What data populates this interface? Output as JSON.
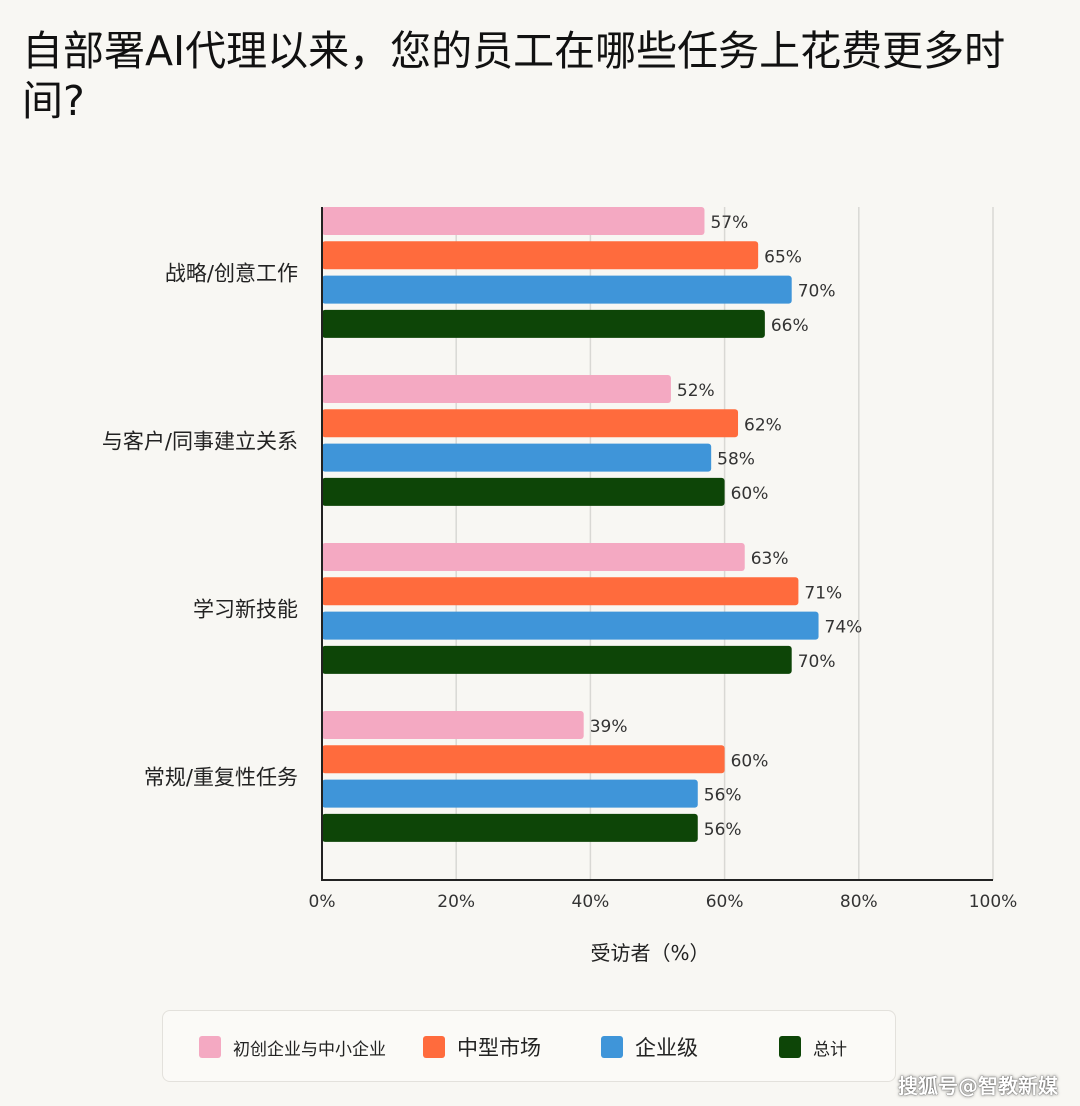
{
  "title": "自部署AI代理以来，您的员工在哪些任务上花费更多时间?",
  "watermark": "搜狐号@智教新媒",
  "chart_data": {
    "type": "bar",
    "orientation": "horizontal",
    "title": "自部署AI代理以来，您的员工在哪些任务上花费更多时间?",
    "xlabel": "受访者（%）",
    "ylabel": "",
    "xlim": [
      0,
      100
    ],
    "x_ticks": [
      "0%",
      "20%",
      "40%",
      "60%",
      "80%",
      "100%"
    ],
    "grid": true,
    "legend_position": "bottom",
    "categories": [
      "战略/创意工作",
      "与客户/同事建立关系",
      "学习新技能",
      "常规/重复性任务"
    ],
    "series": [
      {
        "name": "初创企业与中小企业",
        "color": "#f4a9c2",
        "values": [
          57,
          52,
          63,
          39
        ],
        "labels": [
          "57%",
          "52%",
          "63%",
          "39%"
        ]
      },
      {
        "name": "中型市场",
        "color": "#ff6b3d",
        "values": [
          65,
          62,
          71,
          60
        ],
        "labels": [
          "65%",
          "62%",
          "71%",
          "60%"
        ]
      },
      {
        "name": "企业级",
        "color": "#3f95d9",
        "values": [
          70,
          58,
          74,
          56
        ],
        "labels": [
          "70%",
          "58%",
          "74%",
          "56%"
        ]
      },
      {
        "name": "总计",
        "color": "#0d4507",
        "values": [
          66,
          60,
          70,
          56
        ],
        "labels": [
          "66%",
          "60%",
          "70%",
          "56%"
        ]
      }
    ]
  }
}
